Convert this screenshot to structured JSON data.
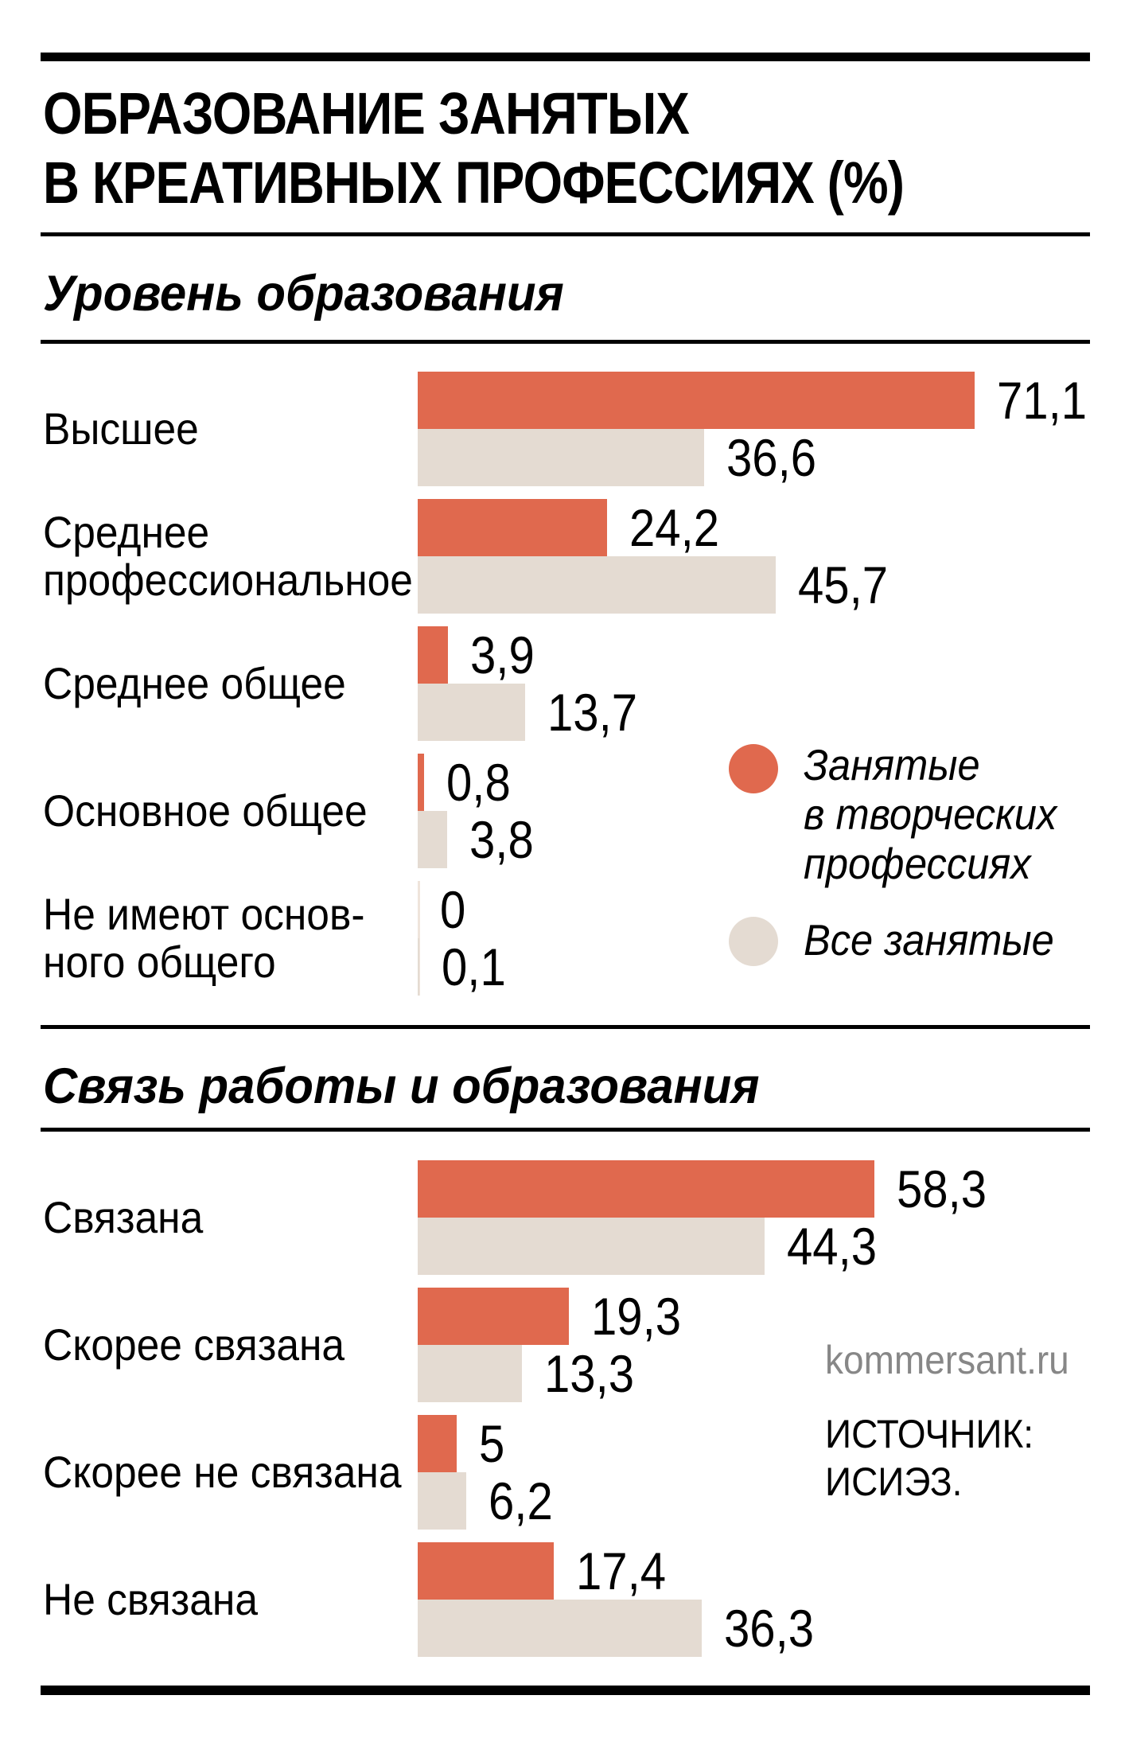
{
  "title": {
    "line1": "ОБРАЗОВАНИЕ ЗАНЯТЫХ",
    "line2": "В КРЕАТИВНЫХ ПРОФЕССИЯХ (%)"
  },
  "colors": {
    "creative": "#E0694E",
    "all_employed": "#E4DBD2",
    "zero_axis": "#EFE4DB",
    "rule": "#000000",
    "watermark_gray": "#878787"
  },
  "sections": [
    {
      "header": "Уровень образования",
      "rows": [
        {
          "label_lines": [
            "Высшее"
          ],
          "creative_value": 71.1,
          "creative_label": "71,1",
          "all_value": 36.6,
          "all_label": "36,6"
        },
        {
          "label_lines": [
            "Среднее",
            "профессиональное"
          ],
          "creative_value": 24.2,
          "creative_label": "24,2",
          "all_value": 45.7,
          "all_label": "45,7"
        },
        {
          "label_lines": [
            "Среднее общее"
          ],
          "creative_value": 3.9,
          "creative_label": "3,9",
          "all_value": 13.7,
          "all_label": "13,7"
        },
        {
          "label_lines": [
            "Основное общее"
          ],
          "creative_value": 0.8,
          "creative_label": "0,8",
          "all_value": 3.8,
          "all_label": "3,8"
        },
        {
          "label_lines": [
            "Не имеют основ-",
            "ного общего"
          ],
          "creative_value": 0,
          "creative_label": "0",
          "all_value": 0.1,
          "all_label": "0,1"
        }
      ]
    },
    {
      "header": "Связь работы и образования",
      "rows": [
        {
          "label_lines": [
            "Связана"
          ],
          "creative_value": 58.3,
          "creative_label": "58,3",
          "all_value": 44.3,
          "all_label": "44,3"
        },
        {
          "label_lines": [
            "Скорее связана"
          ],
          "creative_value": 19.3,
          "creative_label": "19,3",
          "all_value": 13.3,
          "all_label": "13,3"
        },
        {
          "label_lines": [
            "Скорее не связана"
          ],
          "creative_value": 5,
          "creative_label": "5",
          "all_value": 6.2,
          "all_label": "6,2"
        },
        {
          "label_lines": [
            "Не связана"
          ],
          "creative_value": 17.4,
          "creative_label": "17,4",
          "all_value": 36.3,
          "all_label": "36,3"
        }
      ]
    }
  ],
  "legend": {
    "creative_lines": [
      "Занятые",
      "в творческих",
      "профессиях"
    ],
    "all_lines": [
      "Все занятые"
    ]
  },
  "branding": "kommersant.ru",
  "source_lines": [
    "ИСТОЧНИК:",
    "ИСИЭЗ."
  ],
  "chart_data": [
    {
      "type": "bar",
      "orientation": "horizontal",
      "title": "Уровень образования",
      "unit": "%",
      "categories": [
        "Высшее",
        "Среднее профессиональное",
        "Среднее общее",
        "Основное общее",
        "Не имеют основного общего"
      ],
      "series": [
        {
          "name": "Занятые в творческих профессиях",
          "values": [
            71.1,
            24.2,
            3.9,
            0.8,
            0
          ]
        },
        {
          "name": "Все занятые",
          "values": [
            36.6,
            45.7,
            13.7,
            3.8,
            0.1
          ]
        }
      ],
      "xlim": [
        0,
        80
      ],
      "grid": false,
      "legend_position": "right-middle"
    },
    {
      "type": "bar",
      "orientation": "horizontal",
      "title": "Связь работы и образования",
      "unit": "%",
      "categories": [
        "Связана",
        "Скорее связана",
        "Скорее не связана",
        "Не связана"
      ],
      "series": [
        {
          "name": "Занятые в творческих профессиях",
          "values": [
            58.3,
            19.3,
            5,
            17.4
          ]
        },
        {
          "name": "Все занятые",
          "values": [
            44.3,
            13.3,
            6.2,
            36.3
          ]
        }
      ],
      "xlim": [
        0,
        80
      ],
      "grid": false
    }
  ]
}
